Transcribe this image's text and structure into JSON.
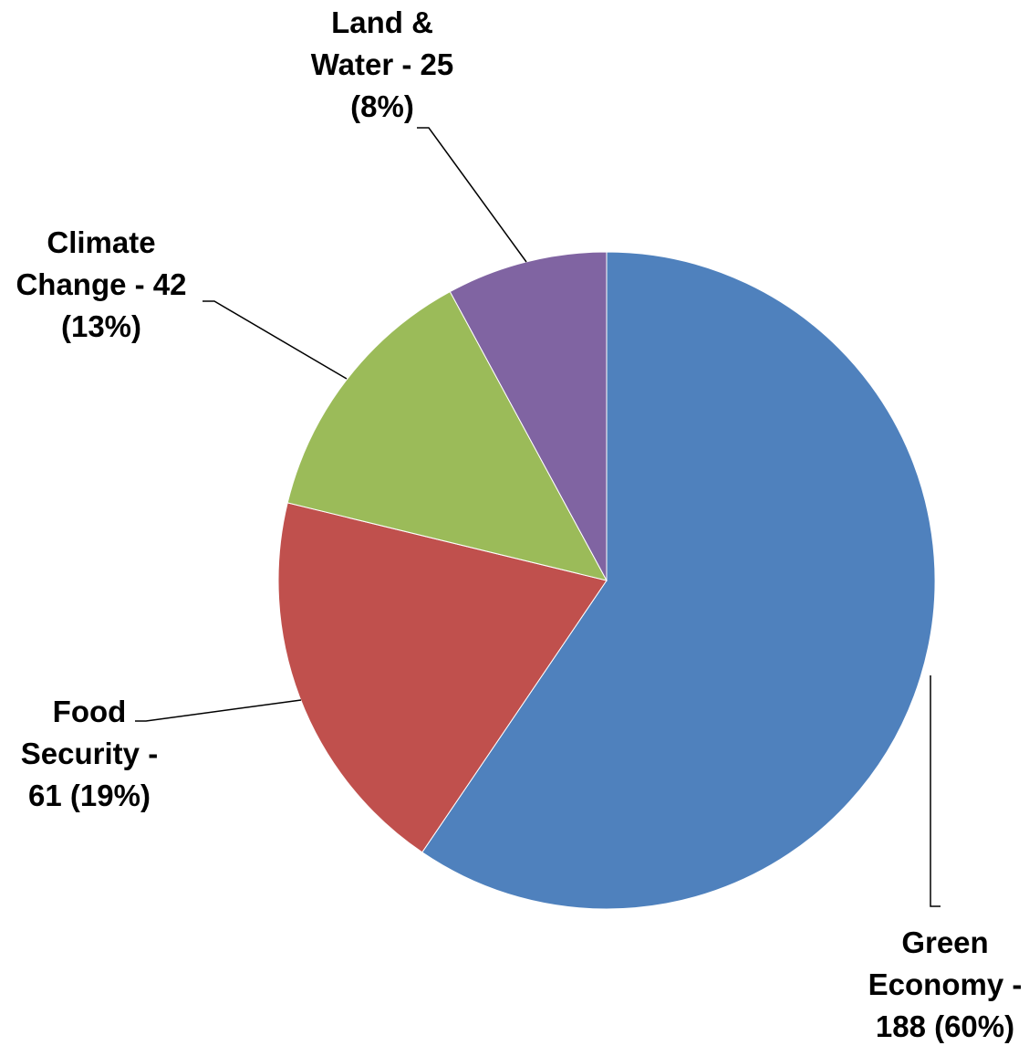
{
  "chart_data": {
    "type": "pie",
    "title": "",
    "slices": [
      {
        "name": "Green Economy",
        "value": 188,
        "percent": 60,
        "color": "#4F81BD",
        "label_lines": [
          "Green",
          "Economy -",
          "188 (60%)"
        ]
      },
      {
        "name": "Food Security",
        "value": 61,
        "percent": 19,
        "color": "#C0504D",
        "label_lines": [
          "Food",
          "Security -",
          "61 (19%)"
        ]
      },
      {
        "name": "Climate Change",
        "value": 42,
        "percent": 13,
        "color": "#9BBB59",
        "label_lines": [
          "Climate",
          "Change - 42",
          "(13%)"
        ]
      },
      {
        "name": "Land & Water",
        "value": 25,
        "percent": 8,
        "color": "#8064A2",
        "label_lines": [
          "Land &",
          "Water - 25",
          "(8%)"
        ]
      }
    ],
    "start_angle_deg": 0,
    "direction": "clockwise",
    "legend": "none",
    "label_style": "bold, outside with leader lines"
  }
}
